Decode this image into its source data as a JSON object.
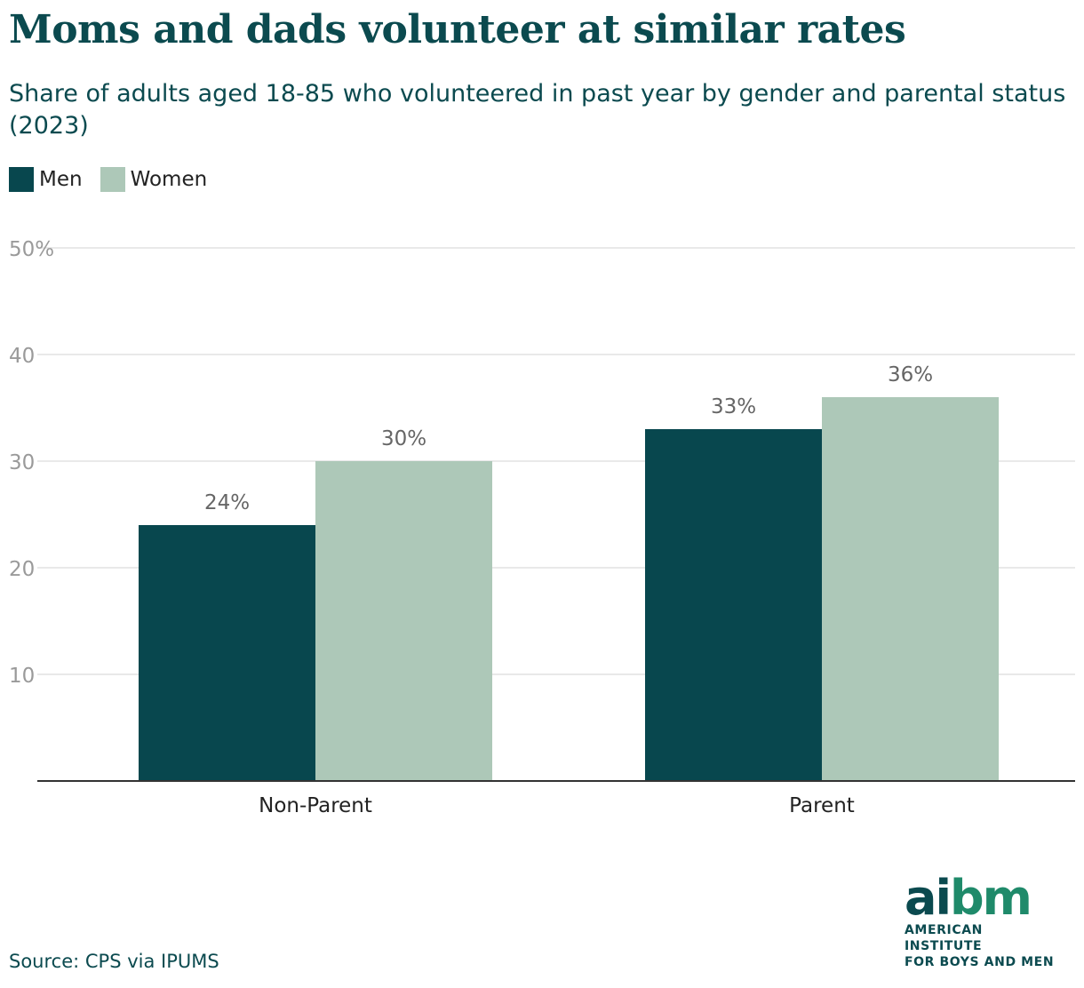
{
  "header": {
    "title": "Moms and dads volunteer at similar rates",
    "subtitle": "Share of adults aged 18-85 who volunteered in past year by gender and parental status (2023)"
  },
  "legend": {
    "items": [
      {
        "label": "Men",
        "color": "#08474e"
      },
      {
        "label": "Women",
        "color": "#adc8b8"
      }
    ]
  },
  "chart_data": {
    "type": "bar",
    "categories": [
      "Non-Parent",
      "Parent"
    ],
    "series": [
      {
        "name": "Men",
        "values": [
          24,
          33
        ],
        "labels": [
          "24%",
          "33%"
        ],
        "color": "#08474e"
      },
      {
        "name": "Women",
        "values": [
          30,
          36
        ],
        "labels": [
          "30%",
          "36%"
        ],
        "color": "#adc8b8"
      }
    ],
    "ylim": [
      0,
      50
    ],
    "yticks": [
      10,
      20,
      30,
      40,
      50
    ],
    "ytick_labels": [
      "10",
      "20",
      "30",
      "40",
      "50%"
    ],
    "grid": true,
    "legend_position": "top-left"
  },
  "footer": {
    "source": "Source: CPS via IPUMS",
    "logo_word_prefix": "ai",
    "logo_word_suffix": "bm",
    "logo_line1": "AMERICAN INSTITUTE",
    "logo_line2": "FOR BOYS AND MEN"
  }
}
